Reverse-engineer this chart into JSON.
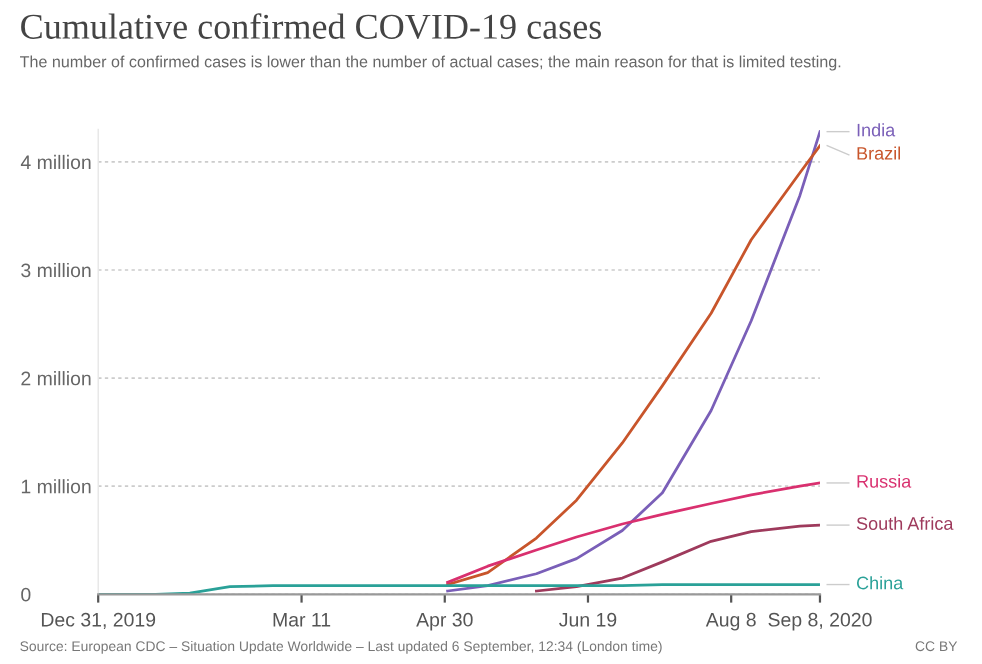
{
  "chart_data": {
    "type": "line",
    "title": "Cumulative confirmed COVID-19 cases",
    "subtitle": "The number of confirmed cases is lower than the number of actual cases; the main reason for that is limited testing.",
    "annotations": [
      "Source: European CDC – Situation Update Worldwide – Last updated 6 September, 12:34 (London time)",
      "CC BY"
    ],
    "x": [
      "2019-12-31",
      "2020-01-20",
      "2020-02-01",
      "2020-02-15",
      "2020-03-01",
      "2020-03-15",
      "2020-04-01",
      "2020-04-15",
      "2020-05-01",
      "2020-05-15",
      "2020-06-01",
      "2020-06-15",
      "2020-07-01",
      "2020-07-15",
      "2020-08-01",
      "2020-08-15",
      "2020-09-01",
      "2020-09-08"
    ],
    "series": [
      {
        "name": "India",
        "color": "#7a5fb8",
        "values": [
          null,
          null,
          null,
          null,
          null,
          null,
          null,
          null,
          30000,
          80000,
          190000,
          330000,
          590000,
          940000,
          1700000,
          2530000,
          3690000,
          4280000
        ]
      },
      {
        "name": "Brazil",
        "color": "#c8552b",
        "values": [
          null,
          null,
          null,
          null,
          null,
          null,
          null,
          null,
          90000,
          200000,
          520000,
          870000,
          1400000,
          1930000,
          2600000,
          3280000,
          3900000,
          4150000
        ]
      },
      {
        "name": "Russia",
        "color": "#d9306f",
        "values": [
          null,
          null,
          null,
          null,
          null,
          null,
          null,
          null,
          110000,
          260000,
          410000,
          530000,
          650000,
          740000,
          840000,
          920000,
          1000000,
          1030000
        ]
      },
      {
        "name": "South Africa",
        "color": "#9e3a5c",
        "values": [
          null,
          null,
          null,
          null,
          null,
          null,
          null,
          null,
          null,
          null,
          30000,
          70000,
          150000,
          300000,
          490000,
          580000,
          630000,
          640000
        ]
      },
      {
        "name": "China",
        "color": "#2aa198",
        "values": [
          0,
          0,
          10000,
          70000,
          80000,
          80000,
          80000,
          80000,
          80000,
          80000,
          80000,
          80000,
          80000,
          90000,
          90000,
          90000,
          90000,
          90000
        ]
      }
    ],
    "xlim": [
      "2019-12-31",
      "2020-09-08"
    ],
    "xticks": [
      {
        "value": "2019-12-31",
        "label": "Dec 31, 2019"
      },
      {
        "value": "2020-03-11",
        "label": "Mar 11"
      },
      {
        "value": "2020-04-30",
        "label": "Apr 30"
      },
      {
        "value": "2020-06-19",
        "label": "Jun 19"
      },
      {
        "value": "2020-08-08",
        "label": "Aug 8"
      },
      {
        "value": "2020-09-08",
        "label": "Sep 8, 2020"
      }
    ],
    "ylim": [
      0,
      4300000
    ],
    "yticks": [
      {
        "value": 0,
        "label": "0"
      },
      {
        "value": 1000000,
        "label": "1 million"
      },
      {
        "value": 2000000,
        "label": "2 million"
      },
      {
        "value": 3000000,
        "label": "3 million"
      },
      {
        "value": 4000000,
        "label": "4 million"
      }
    ],
    "grid": "y",
    "legend": false,
    "line_style": "solid",
    "marker": "none"
  }
}
